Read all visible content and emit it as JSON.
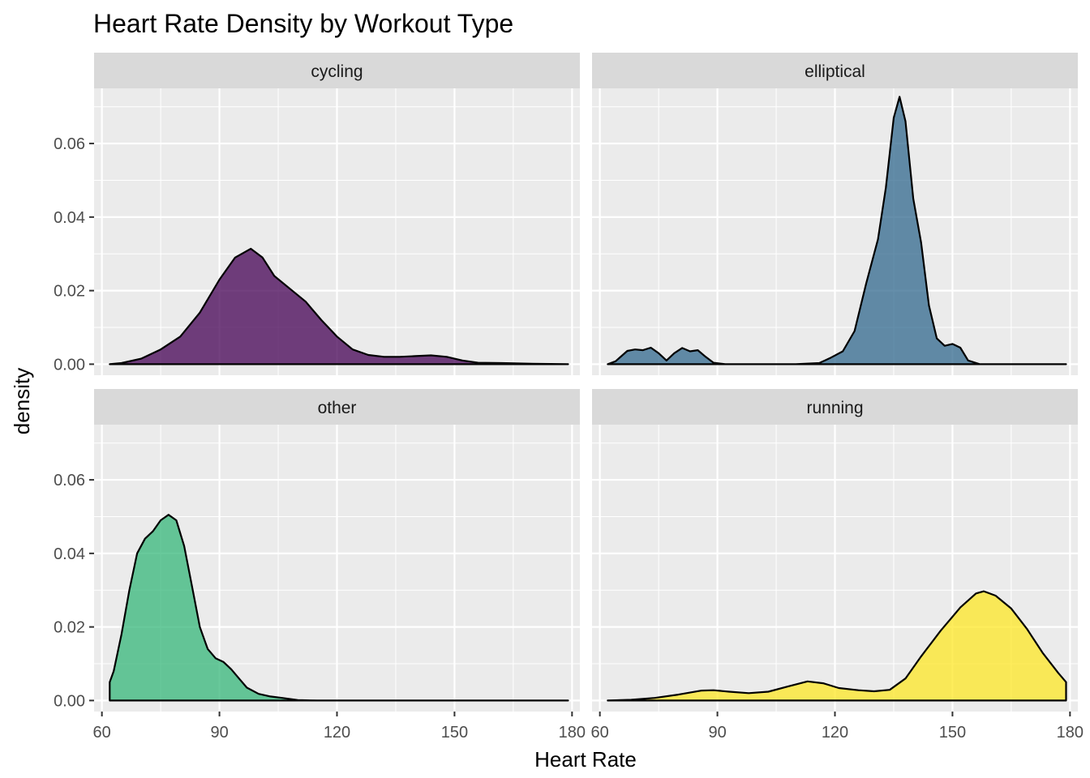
{
  "chart_data": {
    "type": "area",
    "title": "Heart Rate Density by Workout Type",
    "xlabel": "Heart Rate",
    "ylabel": "density",
    "xlim": [
      58,
      182
    ],
    "ylim": [
      -0.003,
      0.075
    ],
    "x_ticks": [
      60,
      90,
      120,
      150,
      180
    ],
    "y_ticks": [
      0.0,
      0.02,
      0.04,
      0.06
    ],
    "x_tick_labels": [
      "60",
      "90",
      "120",
      "150",
      "180"
    ],
    "y_tick_labels": [
      "0.00",
      "0.02",
      "0.04",
      "0.06"
    ],
    "grid": true,
    "legend": "none",
    "facets": [
      {
        "name": "cycling",
        "fill": "#440154",
        "points": [
          [
            62,
            0
          ],
          [
            65,
            0.0003
          ],
          [
            70,
            0.0015
          ],
          [
            75,
            0.004
          ],
          [
            80,
            0.0075
          ],
          [
            85,
            0.014
          ],
          [
            90,
            0.023
          ],
          [
            94,
            0.029
          ],
          [
            98,
            0.0314
          ],
          [
            101,
            0.029
          ],
          [
            104,
            0.024
          ],
          [
            108,
            0.0205
          ],
          [
            112,
            0.017
          ],
          [
            116,
            0.012
          ],
          [
            120,
            0.0075
          ],
          [
            124,
            0.004
          ],
          [
            128,
            0.0025
          ],
          [
            132,
            0.002
          ],
          [
            136,
            0.002
          ],
          [
            140,
            0.0022
          ],
          [
            144,
            0.0024
          ],
          [
            148,
            0.002
          ],
          [
            152,
            0.001
          ],
          [
            156,
            0.0004
          ],
          [
            162,
            0.0003
          ],
          [
            170,
            0.0001
          ],
          [
            179,
            0
          ]
        ]
      },
      {
        "name": "elliptical",
        "fill": "#31688E",
        "points": [
          [
            62,
            0
          ],
          [
            64,
            0.0008
          ],
          [
            67,
            0.0036
          ],
          [
            69,
            0.004
          ],
          [
            71,
            0.0038
          ],
          [
            73,
            0.0045
          ],
          [
            75,
            0.003
          ],
          [
            77,
            0.001
          ],
          [
            79,
            0.003
          ],
          [
            81,
            0.0044
          ],
          [
            83,
            0.0035
          ],
          [
            85,
            0.0038
          ],
          [
            87,
            0.002
          ],
          [
            89,
            0.0004
          ],
          [
            92,
            0
          ],
          [
            110,
            0
          ],
          [
            116,
            0.0003
          ],
          [
            119,
            0.0018
          ],
          [
            122,
            0.0035
          ],
          [
            125,
            0.009
          ],
          [
            128,
            0.022
          ],
          [
            131,
            0.034
          ],
          [
            133,
            0.048
          ],
          [
            135,
            0.067
          ],
          [
            136.5,
            0.0727
          ],
          [
            138,
            0.066
          ],
          [
            140,
            0.045
          ],
          [
            142,
            0.033
          ],
          [
            144,
            0.016
          ],
          [
            146,
            0.007
          ],
          [
            148,
            0.005
          ],
          [
            150,
            0.0055
          ],
          [
            152,
            0.0045
          ],
          [
            154,
            0.001
          ],
          [
            157,
            0
          ],
          [
            179,
            0
          ]
        ]
      },
      {
        "name": "other",
        "fill": "#35B779",
        "points": [
          [
            62,
            0
          ],
          [
            62,
            0.005
          ],
          [
            63,
            0.008
          ],
          [
            65,
            0.018
          ],
          [
            67,
            0.03
          ],
          [
            69,
            0.04
          ],
          [
            71,
            0.044
          ],
          [
            73,
            0.046
          ],
          [
            75,
            0.049
          ],
          [
            77,
            0.0505
          ],
          [
            79,
            0.049
          ],
          [
            81,
            0.042
          ],
          [
            83,
            0.031
          ],
          [
            85,
            0.02
          ],
          [
            87,
            0.014
          ],
          [
            89,
            0.0115
          ],
          [
            91,
            0.0105
          ],
          [
            93,
            0.0085
          ],
          [
            95,
            0.006
          ],
          [
            97,
            0.0035
          ],
          [
            100,
            0.0018
          ],
          [
            103,
            0.0011
          ],
          [
            106,
            0.0007
          ],
          [
            110,
            0.0001
          ],
          [
            115,
            0
          ],
          [
            179,
            0
          ]
        ]
      },
      {
        "name": "running",
        "fill": "#FDE725",
        "points": [
          [
            62,
            0
          ],
          [
            68,
            0.0002
          ],
          [
            74,
            0.0007
          ],
          [
            80,
            0.0016
          ],
          [
            86,
            0.0027
          ],
          [
            89,
            0.0028
          ],
          [
            93,
            0.0024
          ],
          [
            98,
            0.002
          ],
          [
            103,
            0.0024
          ],
          [
            108,
            0.0038
          ],
          [
            113,
            0.0052
          ],
          [
            117,
            0.0047
          ],
          [
            121,
            0.0034
          ],
          [
            126,
            0.0028
          ],
          [
            130,
            0.0025
          ],
          [
            134,
            0.0029
          ],
          [
            138,
            0.006
          ],
          [
            142,
            0.012
          ],
          [
            147,
            0.019
          ],
          [
            152,
            0.0253
          ],
          [
            156,
            0.0291
          ],
          [
            158,
            0.0297
          ],
          [
            161,
            0.0285
          ],
          [
            165,
            0.025
          ],
          [
            169,
            0.0195
          ],
          [
            173,
            0.013
          ],
          [
            177,
            0.0075
          ],
          [
            179,
            0.005
          ],
          [
            179,
            0
          ]
        ]
      }
    ]
  }
}
